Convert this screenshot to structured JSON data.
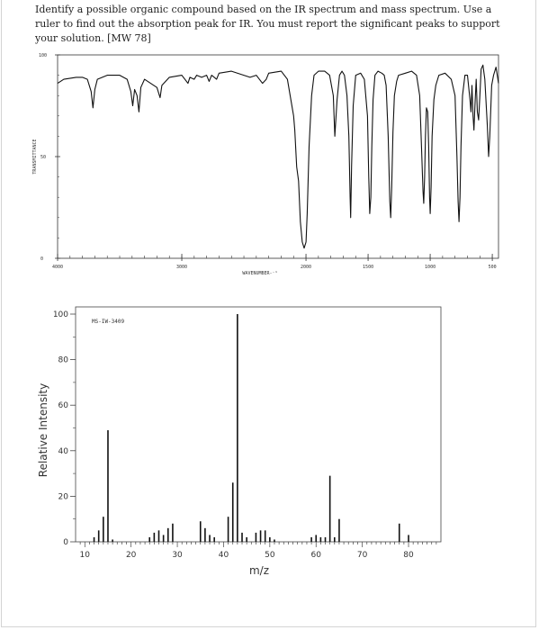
{
  "question": {
    "text": "Identify a possible organic compound based on the IR spectrum and mass spectrum. Use a ruler to find out the absorption peak for IR. You must report the significant peaks to support your solution. [MW 78]"
  },
  "chart_data": [
    {
      "type": "line",
      "xlabel": "WAVENUMBER‑⁻¹",
      "ylabel": "TRANSMITTANCE",
      "xlim": [
        4000,
        450
      ],
      "ylim": [
        0,
        100
      ],
      "x_reversed": true,
      "x_ticks": [
        4000,
        3000,
        2000,
        1500,
        1000,
        500
      ],
      "x_tick_labels": [
        "4000",
        "3000",
        "2000",
        "1500",
        "1000",
        "500"
      ],
      "y_ticks": [
        0,
        50,
        100
      ],
      "y_tick_labels": [
        "0",
        "50",
        "100"
      ],
      "points": [
        [
          4000,
          86
        ],
        [
          3950,
          88
        ],
        [
          3850,
          89
        ],
        [
          3800,
          89
        ],
        [
          3760,
          88
        ],
        [
          3730,
          82
        ],
        [
          3715,
          74
        ],
        [
          3700,
          83
        ],
        [
          3680,
          88
        ],
        [
          3600,
          90
        ],
        [
          3500,
          90
        ],
        [
          3440,
          88
        ],
        [
          3410,
          82
        ],
        [
          3395,
          75
        ],
        [
          3380,
          83
        ],
        [
          3360,
          80
        ],
        [
          3345,
          72
        ],
        [
          3330,
          84
        ],
        [
          3300,
          88
        ],
        [
          3200,
          84
        ],
        [
          3175,
          79
        ],
        [
          3160,
          85
        ],
        [
          3100,
          89
        ],
        [
          3000,
          90
        ],
        [
          2950,
          86
        ],
        [
          2935,
          89
        ],
        [
          2900,
          88
        ],
        [
          2880,
          90
        ],
        [
          2840,
          89
        ],
        [
          2800,
          90
        ],
        [
          2780,
          87
        ],
        [
          2760,
          90
        ],
        [
          2720,
          88
        ],
        [
          2700,
          91
        ],
        [
          2600,
          92
        ],
        [
          2500,
          90
        ],
        [
          2450,
          89
        ],
        [
          2400,
          90
        ],
        [
          2350,
          86
        ],
        [
          2320,
          88
        ],
        [
          2300,
          91
        ],
        [
          2200,
          92
        ],
        [
          2150,
          88
        ],
        [
          2100,
          70
        ],
        [
          2090,
          63
        ],
        [
          2075,
          45
        ],
        [
          2060,
          38
        ],
        [
          2045,
          18
        ],
        [
          2030,
          8
        ],
        [
          2015,
          5
        ],
        [
          2000,
          8
        ],
        [
          1990,
          22
        ],
        [
          1975,
          55
        ],
        [
          1955,
          80
        ],
        [
          1935,
          90
        ],
        [
          1900,
          92
        ],
        [
          1850,
          92
        ],
        [
          1810,
          90
        ],
        [
          1780,
          80
        ],
        [
          1768,
          60
        ],
        [
          1760,
          68
        ],
        [
          1750,
          78
        ],
        [
          1730,
          90
        ],
        [
          1710,
          92
        ],
        [
          1690,
          90
        ],
        [
          1670,
          80
        ],
        [
          1655,
          60
        ],
        [
          1645,
          30
        ],
        [
          1640,
          20
        ],
        [
          1633,
          45
        ],
        [
          1620,
          75
        ],
        [
          1600,
          90
        ],
        [
          1560,
          91
        ],
        [
          1530,
          88
        ],
        [
          1505,
          70
        ],
        [
          1495,
          40
        ],
        [
          1487,
          22
        ],
        [
          1478,
          30
        ],
        [
          1470,
          55
        ],
        [
          1460,
          78
        ],
        [
          1445,
          90
        ],
        [
          1420,
          92
        ],
        [
          1390,
          91
        ],
        [
          1370,
          90
        ],
        [
          1355,
          85
        ],
        [
          1338,
          60
        ],
        [
          1325,
          28
        ],
        [
          1318,
          20
        ],
        [
          1310,
          35
        ],
        [
          1300,
          62
        ],
        [
          1288,
          80
        ],
        [
          1270,
          87
        ],
        [
          1255,
          90
        ],
        [
          1200,
          91
        ],
        [
          1150,
          92
        ],
        [
          1110,
          90
        ],
        [
          1085,
          80
        ],
        [
          1070,
          55
        ],
        [
          1058,
          33
        ],
        [
          1052,
          27
        ],
        [
          1045,
          40
        ],
        [
          1038,
          60
        ],
        [
          1030,
          74
        ],
        [
          1020,
          72
        ],
        [
          1012,
          55
        ],
        [
          1005,
          30
        ],
        [
          1000,
          22
        ],
        [
          993,
          35
        ],
        [
          985,
          60
        ],
        [
          970,
          78
        ],
        [
          955,
          85
        ],
        [
          930,
          90
        ],
        [
          880,
          91
        ],
        [
          830,
          88
        ],
        [
          800,
          80
        ],
        [
          785,
          50
        ],
        [
          775,
          28
        ],
        [
          768,
          18
        ],
        [
          760,
          30
        ],
        [
          752,
          55
        ],
        [
          740,
          80
        ],
        [
          720,
          90
        ],
        [
          700,
          90
        ],
        [
          680,
          78
        ],
        [
          672,
          72
        ],
        [
          664,
          85
        ],
        [
          655,
          70
        ],
        [
          648,
          63
        ],
        [
          640,
          75
        ],
        [
          630,
          88
        ],
        [
          620,
          72
        ],
        [
          610,
          68
        ],
        [
          600,
          80
        ],
        [
          590,
          93
        ],
        [
          575,
          95
        ],
        [
          560,
          88
        ],
        [
          540,
          65
        ],
        [
          530,
          50
        ],
        [
          520,
          60
        ],
        [
          505,
          85
        ],
        [
          490,
          90
        ],
        [
          470,
          94
        ],
        [
          450,
          86
        ]
      ]
    },
    {
      "type": "bar",
      "ylabel": "Relative Intensity",
      "xlabel": "m/z",
      "xlim": [
        8,
        87
      ],
      "ylim": [
        0,
        100
      ],
      "x_ticks": [
        10,
        20,
        30,
        40,
        50,
        60,
        70,
        80
      ],
      "x_tick_labels": [
        "10",
        "20",
        "30",
        "40",
        "50",
        "60",
        "70",
        "80"
      ],
      "y_ticks": [
        0,
        20,
        40,
        60,
        80,
        100
      ],
      "y_tick_labels": [
        "0",
        "20",
        "40",
        "60",
        "80",
        "100"
      ],
      "annotation": "MS-IW-3409",
      "peaks": [
        {
          "mz": 12,
          "intensity": 2
        },
        {
          "mz": 13,
          "intensity": 5
        },
        {
          "mz": 14,
          "intensity": 11
        },
        {
          "mz": 15,
          "intensity": 49
        },
        {
          "mz": 16,
          "intensity": 1
        },
        {
          "mz": 24,
          "intensity": 2
        },
        {
          "mz": 25,
          "intensity": 4
        },
        {
          "mz": 26,
          "intensity": 5
        },
        {
          "mz": 27,
          "intensity": 3
        },
        {
          "mz": 28,
          "intensity": 6
        },
        {
          "mz": 29,
          "intensity": 8
        },
        {
          "mz": 35,
          "intensity": 9
        },
        {
          "mz": 36,
          "intensity": 6
        },
        {
          "mz": 37,
          "intensity": 3
        },
        {
          "mz": 38,
          "intensity": 2
        },
        {
          "mz": 41,
          "intensity": 11
        },
        {
          "mz": 42,
          "intensity": 26
        },
        {
          "mz": 43,
          "intensity": 100
        },
        {
          "mz": 44,
          "intensity": 4
        },
        {
          "mz": 45,
          "intensity": 2
        },
        {
          "mz": 47,
          "intensity": 4
        },
        {
          "mz": 48,
          "intensity": 5
        },
        {
          "mz": 49,
          "intensity": 5
        },
        {
          "mz": 50,
          "intensity": 2
        },
        {
          "mz": 51,
          "intensity": 1
        },
        {
          "mz": 59,
          "intensity": 2
        },
        {
          "mz": 60,
          "intensity": 3
        },
        {
          "mz": 61,
          "intensity": 2
        },
        {
          "mz": 62,
          "intensity": 2
        },
        {
          "mz": 63,
          "intensity": 29
        },
        {
          "mz": 64,
          "intensity": 2
        },
        {
          "mz": 65,
          "intensity": 10
        },
        {
          "mz": 78,
          "intensity": 8
        },
        {
          "mz": 80,
          "intensity": 3
        }
      ]
    }
  ]
}
